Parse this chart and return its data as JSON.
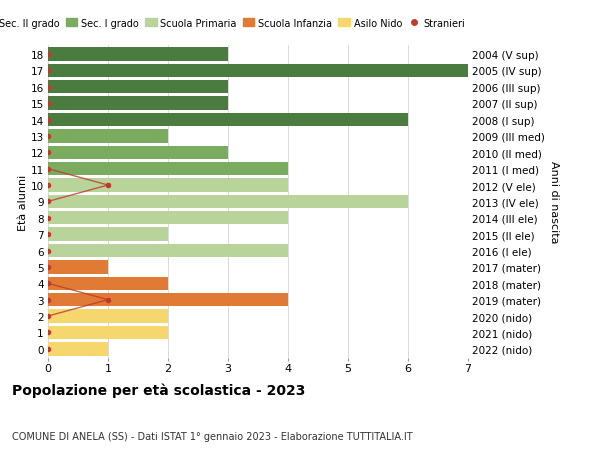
{
  "ages": [
    18,
    17,
    16,
    15,
    14,
    13,
    12,
    11,
    10,
    9,
    8,
    7,
    6,
    5,
    4,
    3,
    2,
    1,
    0
  ],
  "years": [
    "2004 (V sup)",
    "2005 (IV sup)",
    "2006 (III sup)",
    "2007 (II sup)",
    "2008 (I sup)",
    "2009 (III med)",
    "2010 (II med)",
    "2011 (I med)",
    "2012 (V ele)",
    "2013 (IV ele)",
    "2014 (III ele)",
    "2015 (II ele)",
    "2016 (I ele)",
    "2017 (mater)",
    "2018 (mater)",
    "2019 (mater)",
    "2020 (nido)",
    "2021 (nido)",
    "2022 (nido)"
  ],
  "bar_values": [
    3,
    7,
    3,
    3,
    6,
    2,
    3,
    4,
    4,
    6,
    4,
    2,
    4,
    1,
    2,
    4,
    2,
    2,
    1
  ],
  "bar_colors": [
    "#4a7c3f",
    "#4a7c3f",
    "#4a7c3f",
    "#4a7c3f",
    "#4a7c3f",
    "#7aab5e",
    "#7aab5e",
    "#7aab5e",
    "#b8d49a",
    "#b8d49a",
    "#b8d49a",
    "#b8d49a",
    "#b8d49a",
    "#e07a34",
    "#e07a34",
    "#e07a34",
    "#f5d76e",
    "#f5d76e",
    "#f5d76e"
  ],
  "legend_labels": [
    "Sec. II grado",
    "Sec. I grado",
    "Scuola Primaria",
    "Scuola Infanzia",
    "Asilo Nido",
    "Stranieri"
  ],
  "legend_colors": [
    "#4a7c3f",
    "#7aab5e",
    "#b8d49a",
    "#e07a34",
    "#f5d76e",
    "#c0392b"
  ],
  "title": "Popolazione per età scolastica - 2023",
  "subtitle": "COMUNE DI ANELA (SS) - Dati ISTAT 1° gennaio 2023 - Elaborazione TUTTITALIA.IT",
  "ylabel_left": "Età alunni",
  "ylabel_right": "Anni di nascita",
  "xlim": [
    0,
    7
  ],
  "ylim_low": -0.55,
  "ylim_high": 18.55,
  "bg_color": "#ffffff",
  "grid_color": "#cccccc",
  "bar_height": 0.82,
  "upper_stranieri_line_y": [
    11,
    10,
    9
  ],
  "upper_stranieri_line_x": [
    0,
    1,
    0
  ],
  "lower_stranieri_line_y": [
    4,
    3,
    2
  ],
  "lower_stranieri_line_x": [
    0,
    1,
    0
  ],
  "stranieri_special_dots": [
    [
      10,
      1
    ],
    [
      3,
      1
    ]
  ]
}
